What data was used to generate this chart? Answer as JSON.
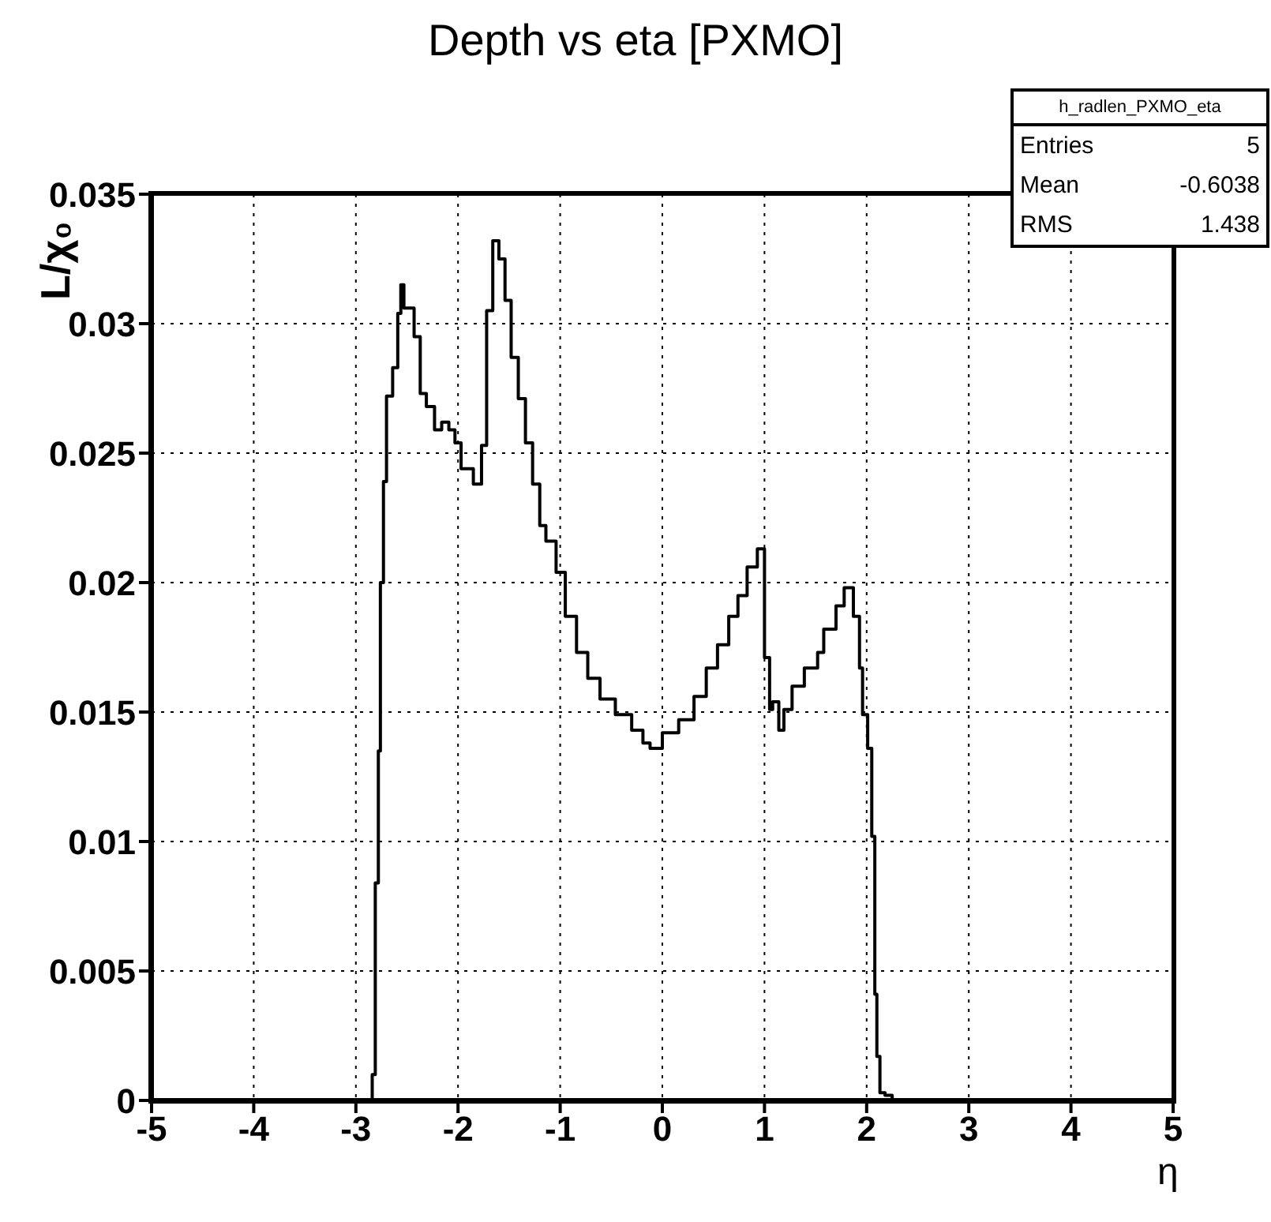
{
  "chart_data": {
    "type": "step",
    "title": "Depth vs eta [PXMO]",
    "xlabel": "η",
    "ylabel": "L/χ₀",
    "annotations": [
      "h_radlen_PXMO_eta",
      "Entries 5",
      "Mean -0.6038",
      "RMS 1.438"
    ],
    "xlim": [
      -5,
      5
    ],
    "xticks": [
      -5,
      -4,
      -3,
      -2,
      -1,
      0,
      1,
      2,
      3,
      4,
      5
    ],
    "ylim": [
      0,
      0.035
    ],
    "yticks": [
      0,
      0.005,
      0.01,
      0.015,
      0.02,
      0.025,
      0.03,
      0.035
    ],
    "grid": true,
    "legend": false,
    "marker": "none",
    "line_style": "solid",
    "series": [
      {
        "color": "#000000",
        "x": [
          -5,
          -2.84,
          -2.81,
          -2.78,
          -2.76,
          -2.73,
          -2.7,
          -2.64,
          -2.59,
          -2.56,
          -2.53,
          -2.43,
          -2.37,
          -2.31,
          -2.23,
          -2.16,
          -2.09,
          -2.03,
          -1.97,
          -1.85,
          -1.77,
          -1.72,
          -1.66,
          -1.6,
          -1.54,
          -1.48,
          -1.41,
          -1.34,
          -1.27,
          -1.2,
          -1.14,
          -1.04,
          -0.95,
          -0.84,
          -0.73,
          -0.61,
          -0.46,
          -0.3,
          -0.19,
          -0.12,
          0.0,
          0.16,
          0.31,
          0.43,
          0.54,
          0.65,
          0.74,
          0.83,
          0.93,
          1.0,
          1.05,
          1.08,
          1.14,
          1.19,
          1.27,
          1.39,
          1.52,
          1.58,
          1.7,
          1.78,
          1.87,
          1.93,
          1.96,
          2.01,
          2.05,
          2.08,
          2.1,
          2.13,
          2.18,
          2.25,
          2.5,
          5
        ],
        "values": [
          0,
          0.001,
          0.0084,
          0.0135,
          0.02,
          0.0239,
          0.0272,
          0.0283,
          0.0304,
          0.0315,
          0.0306,
          0.0295,
          0.0273,
          0.0268,
          0.0259,
          0.0262,
          0.0259,
          0.0254,
          0.0244,
          0.0238,
          0.0253,
          0.0305,
          0.0332,
          0.0325,
          0.0309,
          0.0287,
          0.0271,
          0.0254,
          0.0238,
          0.0222,
          0.0216,
          0.0204,
          0.0187,
          0.0173,
          0.0163,
          0.0155,
          0.0149,
          0.0143,
          0.0138,
          0.0136,
          0.0142,
          0.0147,
          0.0156,
          0.0167,
          0.0176,
          0.0187,
          0.0195,
          0.0206,
          0.0213,
          0.0171,
          0.0151,
          0.0154,
          0.0143,
          0.0151,
          0.016,
          0.0167,
          0.0173,
          0.0182,
          0.0191,
          0.0198,
          0.0187,
          0.0167,
          0.0149,
          0.0136,
          0.0102,
          0.0041,
          0.0017,
          0.0003,
          0.0002,
          0,
          0,
          0
        ]
      }
    ]
  }
}
